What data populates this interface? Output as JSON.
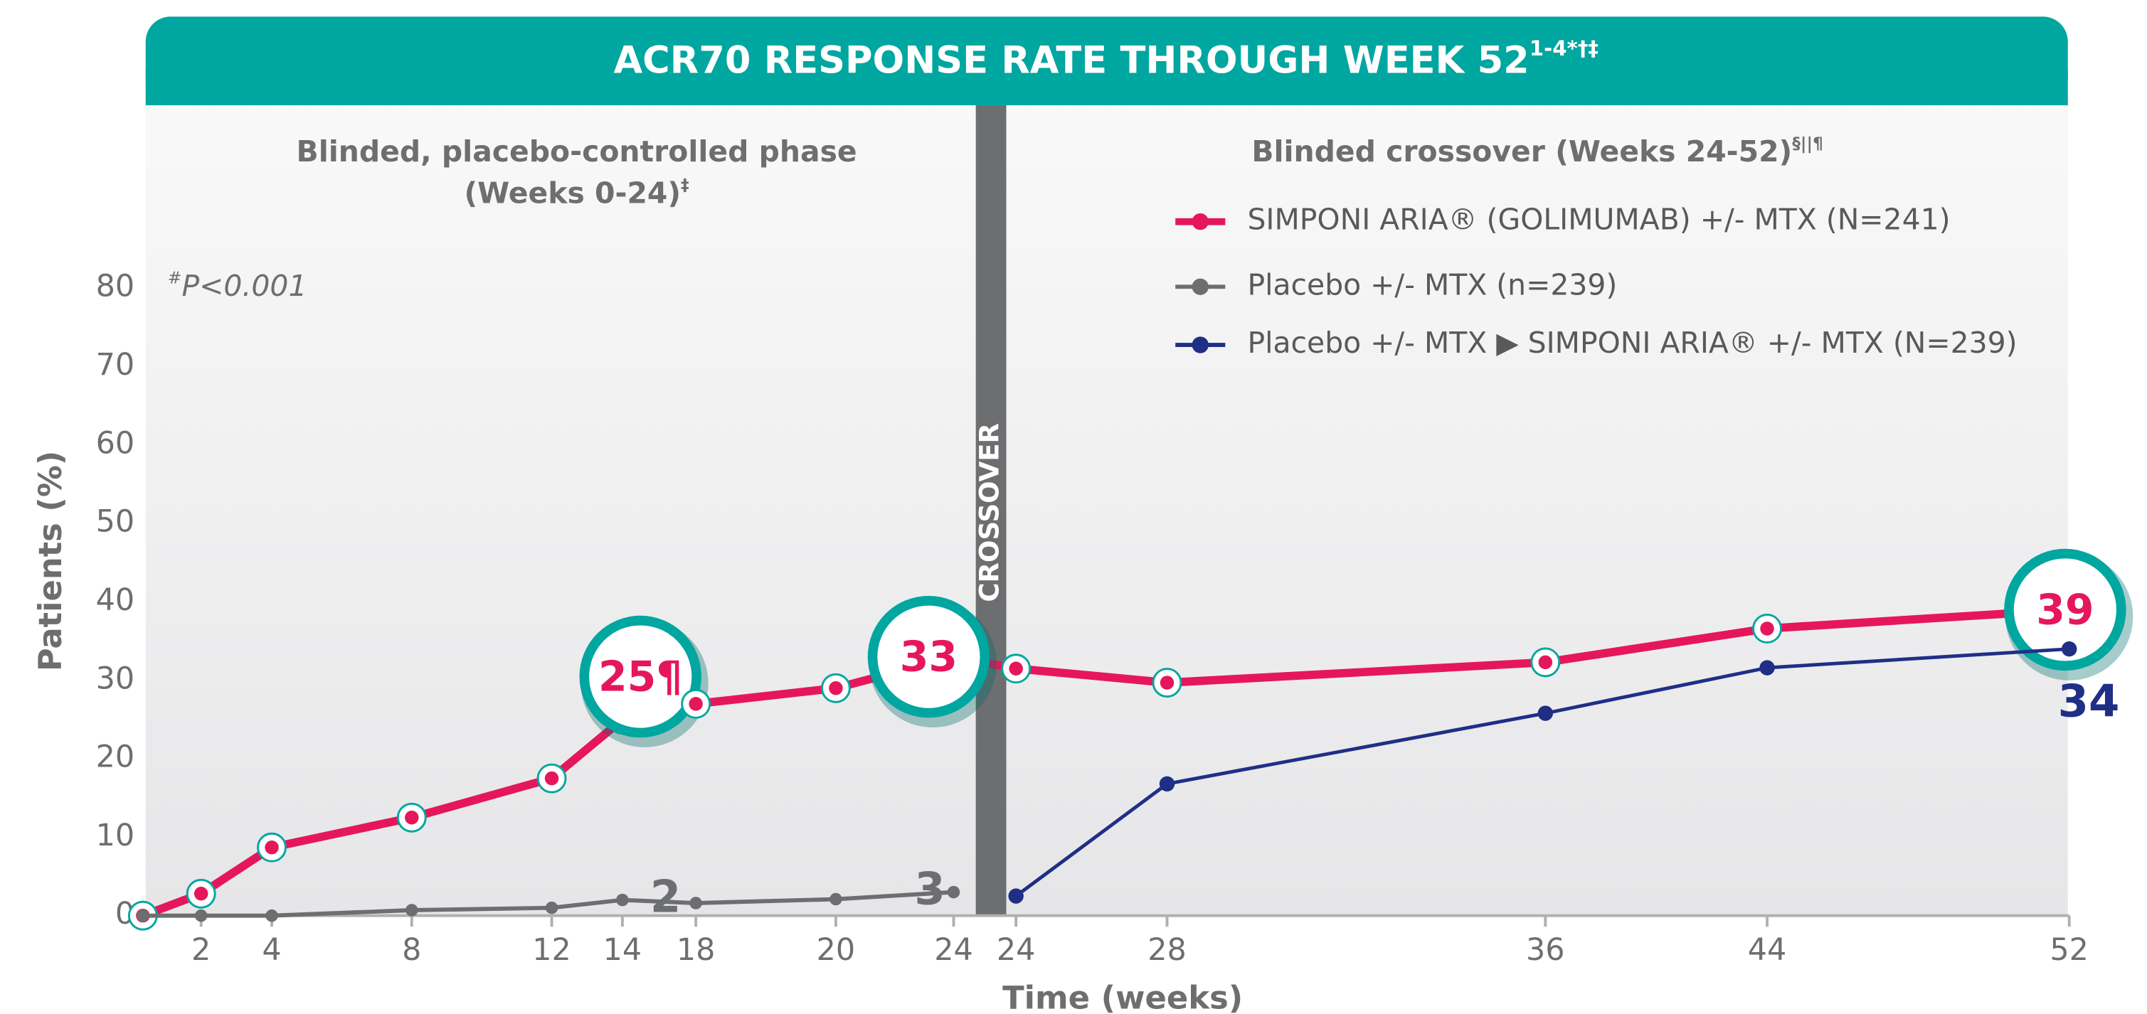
{
  "chart_data": {
    "type": "line",
    "title": "ACR70 RESPONSE RATE THROUGH WEEK 52",
    "title_superscript": "1-4*†‡",
    "phase_left": "Blinded, placebo-controlled phase",
    "phase_left_sub": "(Weeks 0-24)",
    "phase_left_sub_superscript": "‡",
    "phase_right": "Blinded crossover (Weeks 24-52)",
    "phase_right_superscript": "§||¶",
    "note_superscript": "#",
    "note": "P<0.001",
    "divider_label": "CROSSOVER",
    "y_label": "Patients (%)",
    "x_label": "Time (weeks)",
    "categories": [
      null,
      "2",
      "4",
      "8",
      "12",
      "14",
      "18",
      "20",
      "24",
      "24",
      "28",
      "36",
      "44",
      "52"
    ],
    "ylim": [
      0,
      80
    ],
    "yticks": [
      0,
      10,
      20,
      30,
      40,
      50,
      60,
      70,
      80
    ],
    "grid": false,
    "series": [
      {
        "name": "SIMPONI ARIA® (GOLIMUMAB) +/- MTX (N=241)",
        "color": "#e5175a",
        "values": [
          0,
          2.8,
          8.7,
          12.5,
          17.5,
          25,
          27,
          29,
          33,
          31.5,
          29.7,
          32.3,
          36.6,
          39
        ],
        "value_labels": [
          null,
          null,
          null,
          null,
          null,
          "25¶",
          null,
          null,
          "33",
          null,
          null,
          null,
          null,
          "39"
        ]
      },
      {
        "name": "Placebo +/- MTX (n=239)",
        "color": "#6d6e70",
        "values": [
          0,
          0,
          0,
          0.7,
          1,
          2,
          1.6,
          2.1,
          3,
          null,
          null,
          null,
          null,
          null
        ],
        "value_labels": [
          null,
          null,
          null,
          null,
          null,
          "2",
          null,
          null,
          "3",
          null,
          null,
          null,
          null,
          null
        ]
      },
      {
        "name": "Placebo +/- MTX ▶ SIMPONI ARIA® +/- MTX (N=239)",
        "color": "#1f2f86",
        "values": [
          null,
          null,
          null,
          null,
          null,
          null,
          null,
          null,
          null,
          2.5,
          16.8,
          25.8,
          31.6,
          34
        ],
        "value_labels": [
          null,
          null,
          null,
          null,
          null,
          null,
          null,
          null,
          null,
          null,
          null,
          null,
          null,
          "34"
        ]
      }
    ]
  }
}
